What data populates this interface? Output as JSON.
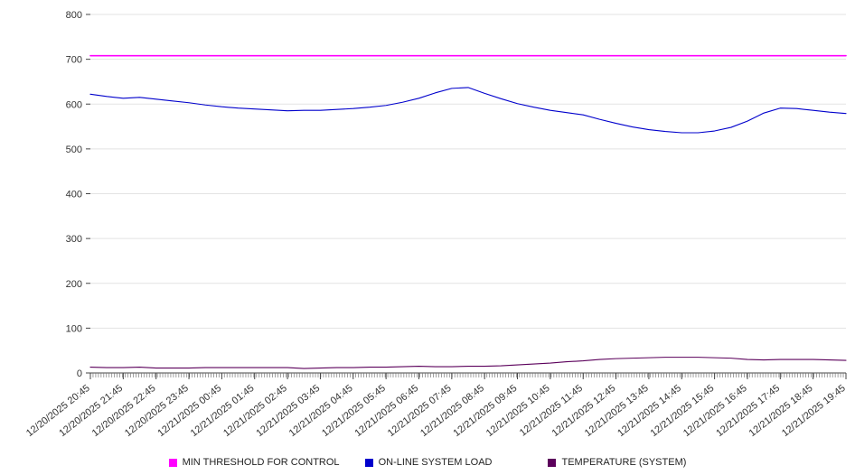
{
  "chart_data": {
    "type": "line",
    "title": "",
    "xlabel": "",
    "ylabel": "",
    "ylim": [
      0,
      800
    ],
    "y_ticks": [
      0,
      100,
      200,
      300,
      400,
      500,
      600,
      700,
      800
    ],
    "grid": true,
    "legend_position": "bottom",
    "x_labels": [
      "12/20/2025 20:45",
      "12/20/2025 21:45",
      "12/20/2025 22:45",
      "12/20/2025 23:45",
      "12/21/2025 00:45",
      "12/21/2025 01:45",
      "12/21/2025 02:45",
      "12/21/2025 03:45",
      "12/21/2025 04:45",
      "12/21/2025 05:45",
      "12/21/2025 06:45",
      "12/21/2025 07:45",
      "12/21/2025 08:45",
      "12/21/2025 09:45",
      "12/21/2025 10:45",
      "12/21/2025 11:45",
      "12/21/2025 12:45",
      "12/21/2025 13:45",
      "12/21/2025 14:45",
      "12/21/2025 15:45",
      "12/21/2025 16:45",
      "12/21/2025 17:45",
      "12/21/2025 18:45",
      "12/21/2025 19:45"
    ],
    "x_resolution_note": "values sampled every 30 minutes; hour labels fall on even indices",
    "series": [
      {
        "name": "MIN THRESHOLD FOR CONTROL",
        "color": "#ff00ff",
        "width": 1.6,
        "values": [
          708,
          708
        ]
      },
      {
        "name": "ON-LINE SYSTEM LOAD",
        "color": "#0000cc",
        "width": 1.1,
        "values": [
          622,
          617,
          613,
          615,
          611,
          607,
          603,
          598,
          594,
          591,
          589,
          587,
          585,
          586,
          586,
          588,
          590,
          593,
          597,
          604,
          613,
          625,
          635,
          637,
          624,
          612,
          601,
          593,
          586,
          581,
          576,
          566,
          557,
          549,
          543,
          539,
          536,
          536,
          540,
          548,
          562,
          580,
          591,
          590,
          586,
          582,
          579
        ]
      },
      {
        "name": "TEMPERATURE (SYSTEM)",
        "color": "#5b005b",
        "width": 1.1,
        "values": [
          13,
          12,
          12,
          13,
          11,
          11,
          11,
          12,
          12,
          12,
          12,
          12,
          12,
          10,
          11,
          12,
          12,
          13,
          13,
          14,
          15,
          14,
          14,
          15,
          15,
          16,
          18,
          20,
          22,
          25,
          27,
          30,
          32,
          33,
          34,
          35,
          35,
          35,
          34,
          33,
          30,
          29,
          30,
          30,
          30,
          29,
          28
        ]
      }
    ],
    "colors": {
      "grid": "#e3e3e3",
      "axis": "#444444",
      "tick_text": "#333333",
      "background": "#ffffff"
    }
  },
  "legend": {
    "items": [
      {
        "label": "MIN THRESHOLD FOR CONTROL"
      },
      {
        "label": "ON-LINE SYSTEM LOAD"
      },
      {
        "label": "TEMPERATURE (SYSTEM)"
      }
    ]
  }
}
